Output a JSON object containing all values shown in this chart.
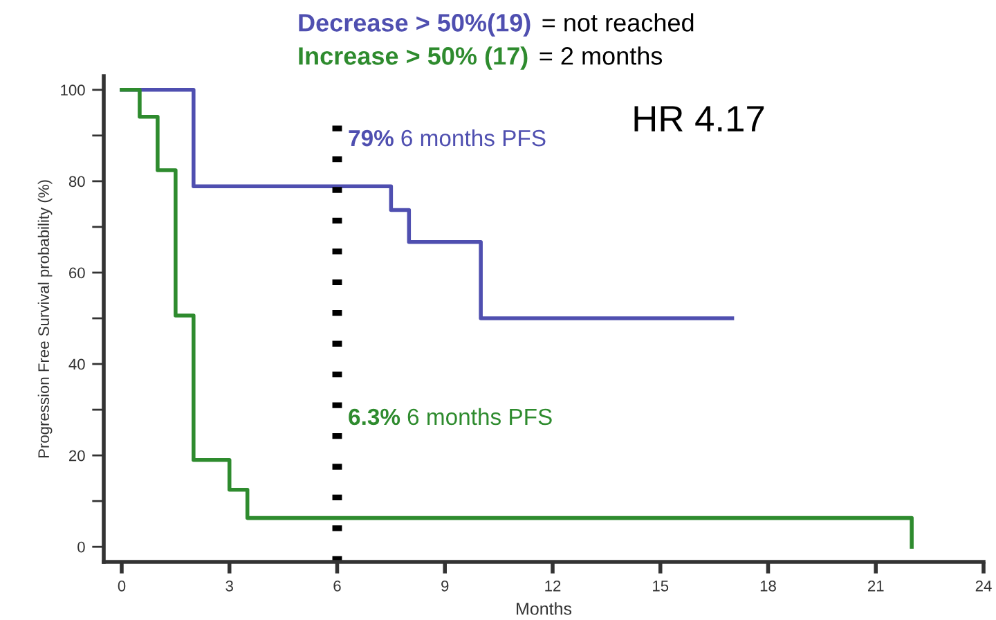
{
  "chart_data": {
    "type": "step",
    "title": "Decrease > 50%(19) = not reached",
    "subtitle": "Increase > 50% (17) = 2 months",
    "xlabel": "Months",
    "ylabel": "Progression Free Survival probability (%)",
    "series": [
      {
        "color": "#4f4fb0",
        "x": [
          0,
          2,
          7.5,
          8,
          10,
          17
        ],
        "values": [
          100,
          78.9,
          73.7,
          66.7,
          50,
          50
        ]
      },
      {
        "color": "#2e8b2e",
        "x": [
          0,
          0.5,
          1,
          1.5,
          2,
          3,
          3.5,
          22
        ],
        "values": [
          100,
          94.1,
          82.4,
          50.6,
          19,
          12.5,
          6.3,
          0
        ]
      }
    ],
    "annotations": [
      "79% 6 months PFS",
      "6.3% 6 months PFS",
      "HR 4.17"
    ],
    "ref_lines": [
      {
        "axis": "x",
        "value": 6,
        "color": "#000000",
        "line_style": "dotted"
      }
    ],
    "xlim": [
      -0.5,
      24
    ],
    "ylim": [
      -3.3,
      103
    ],
    "xticks": [
      0,
      3,
      6,
      9,
      12,
      15,
      18,
      21,
      24
    ],
    "yticks": [
      0,
      {
        "value": 10,
        "label": null
      },
      20,
      {
        "value": 30,
        "label": null
      },
      40,
      {
        "value": 50,
        "label": null
      },
      60,
      {
        "value": 70,
        "label": null
      },
      80,
      {
        "value": 90,
        "label": null
      },
      100
    ],
    "grid": false,
    "legend": false
  }
}
